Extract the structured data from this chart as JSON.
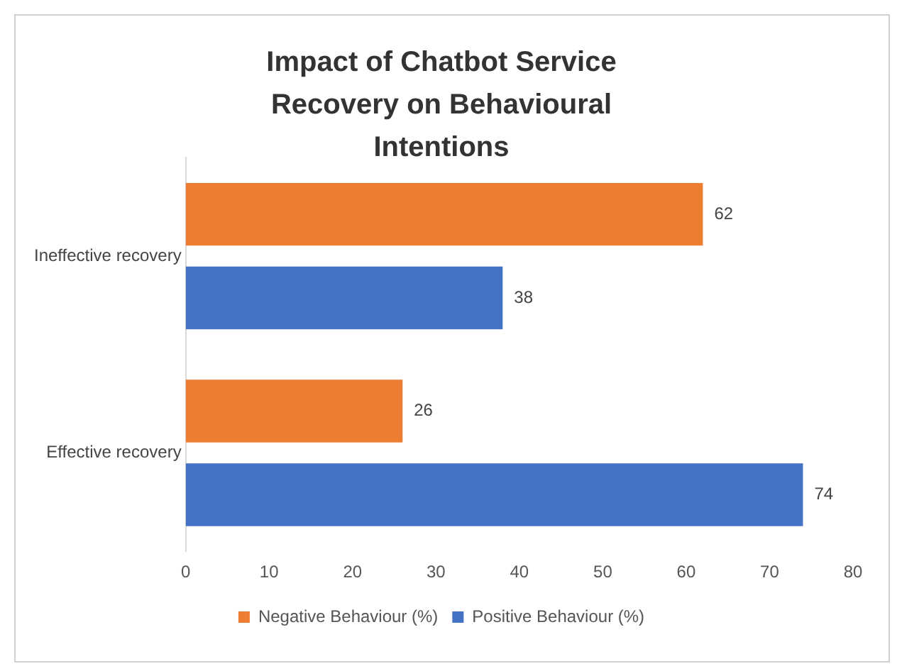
{
  "chart_data": {
    "type": "bar",
    "orientation": "horizontal",
    "title": "Impact of Chatbot Service Recovery on Behavioural Intentions",
    "categories": [
      "Ineffective recovery",
      "Effective recovery"
    ],
    "series": [
      {
        "name": "Negative Behaviour (%)",
        "color": "#ed7d31",
        "values": [
          62,
          26
        ]
      },
      {
        "name": "Positive Behaviour (%)",
        "color": "#4472c4",
        "values": [
          38,
          74
        ]
      }
    ],
    "xlim": [
      0,
      80
    ],
    "xticks": [
      0,
      10,
      20,
      30,
      40,
      50,
      60,
      70,
      80
    ],
    "grid": false,
    "legend": "bottom",
    "data_labels": true
  }
}
